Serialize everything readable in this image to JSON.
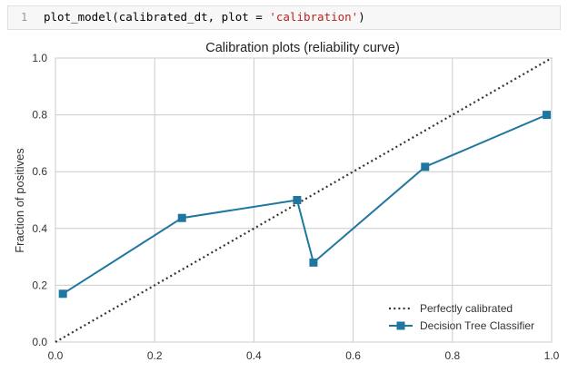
{
  "code_cell": {
    "line_number": "1",
    "code_prefix": "plot_model(calibrated_dt, plot = ",
    "code_string": "'calibration'",
    "code_suffix": ")"
  },
  "chart_data": {
    "type": "line",
    "title": "Calibration plots (reliability curve)",
    "xlabel": "",
    "ylabel": "Fraction of positives",
    "xlim": [
      0,
      1
    ],
    "ylim": [
      0,
      1
    ],
    "x_ticks": [
      "0.0",
      "0.2",
      "0.4",
      "0.6",
      "0.8",
      "1.0"
    ],
    "y_ticks": [
      "0.0",
      "0.2",
      "0.4",
      "0.6",
      "0.8",
      "1.0"
    ],
    "grid": true,
    "legend_position": "bottom-right",
    "series": [
      {
        "name": "Perfectly calibrated",
        "style": "dotted",
        "color": "#333333",
        "x": [
          0,
          1
        ],
        "y": [
          0,
          1
        ]
      },
      {
        "name": "Decision Tree Classifier",
        "style": "solid",
        "marker": "square",
        "color": "#1f77a0",
        "x": [
          0.015,
          0.255,
          0.487,
          0.52,
          0.745,
          0.99
        ],
        "y": [
          0.17,
          0.437,
          0.5,
          0.28,
          0.617,
          0.8
        ]
      }
    ]
  }
}
